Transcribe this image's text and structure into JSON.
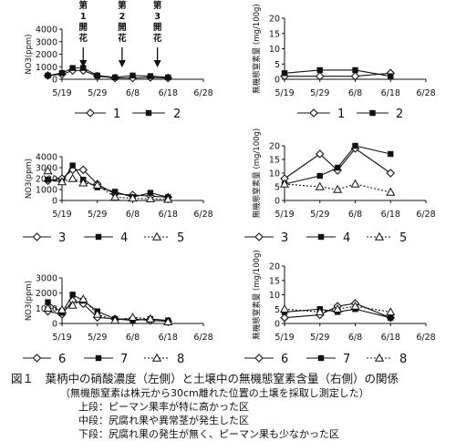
{
  "chart_data": [
    {
      "type": "line",
      "ylabel": "NO3(ppm)",
      "ylim": [
        0,
        4000
      ],
      "yticks": [
        0,
        1000,
        2000,
        3000,
        4000
      ],
      "xticks": [
        "5/19",
        "5/29",
        "6/8",
        "6/18",
        "6/28"
      ],
      "annotations": [
        {
          "text": "第\n1\n開\n花",
          "x": 6
        },
        {
          "text": "第\n2\n開\n花",
          "x": 17
        },
        {
          "text": "第\n3\n開\n花",
          "x": 27
        }
      ],
      "series": [
        {
          "name": "1",
          "marker": "diamond-open",
          "line": "solid",
          "x": [
            -4,
            0,
            3,
            6,
            10,
            15,
            20,
            25,
            30
          ],
          "y": [
            300,
            400,
            700,
            700,
            250,
            100,
            100,
            150,
            100
          ]
        },
        {
          "name": "2",
          "marker": "square-filled",
          "line": "solid",
          "x": [
            -4,
            0,
            3,
            6,
            10,
            15,
            20,
            25,
            30
          ],
          "y": [
            300,
            500,
            900,
            900,
            300,
            150,
            300,
            250,
            150
          ]
        }
      ]
    },
    {
      "type": "line",
      "ylabel": "無機態窒素量 (mg/100g)",
      "ylim": [
        0,
        20
      ],
      "yticks": [
        0,
        5,
        10,
        15,
        20
      ],
      "xticks": [
        "5/19",
        "5/29",
        "6/8",
        "6/18",
        "6/28"
      ],
      "series": [
        {
          "name": "1",
          "marker": "diamond-open",
          "line": "solid",
          "x": [
            0,
            10,
            20,
            30
          ],
          "y": [
            1,
            1,
            1,
            2
          ]
        },
        {
          "name": "2",
          "marker": "square-filled",
          "line": "solid",
          "x": [
            0,
            10,
            20,
            30
          ],
          "y": [
            2,
            3,
            3,
            1
          ]
        }
      ]
    },
    {
      "type": "line",
      "ylabel": "NO3(ppm)",
      "ylim": [
        0,
        4000
      ],
      "yticks": [
        0,
        1000,
        2000,
        3000,
        4000
      ],
      "xticks": [
        "5/19",
        "5/29",
        "6/8",
        "6/18",
        "6/28"
      ],
      "series": [
        {
          "name": "3",
          "marker": "diamond-open",
          "line": "solid",
          "x": [
            -4,
            0,
            3,
            6,
            10,
            15,
            20,
            25,
            30
          ],
          "y": [
            1800,
            2000,
            2800,
            2800,
            1500,
            600,
            500,
            400,
            300
          ]
        },
        {
          "name": "4",
          "marker": "square-filled",
          "line": "solid",
          "x": [
            -4,
            0,
            3,
            6,
            10,
            15,
            20,
            25,
            30
          ],
          "y": [
            1900,
            1700,
            3200,
            1900,
            1200,
            800,
            300,
            700,
            300
          ]
        },
        {
          "name": "5",
          "marker": "triangle-open",
          "line": "dotted",
          "x": [
            -4,
            0,
            3,
            6,
            10,
            15,
            20,
            25,
            30
          ],
          "y": [
            2700,
            1700,
            2000,
            1600,
            1400,
            300,
            200,
            150,
            100
          ]
        }
      ]
    },
    {
      "type": "line",
      "ylabel": "無機態窒素量 (mg/100g)",
      "ylim": [
        0,
        20
      ],
      "yticks": [
        0,
        5,
        10,
        15,
        20
      ],
      "xticks": [
        "5/19",
        "5/29",
        "6/8",
        "6/18",
        "6/28"
      ],
      "series": [
        {
          "name": "3",
          "marker": "diamond-open",
          "line": "solid",
          "x": [
            0,
            10,
            15,
            20,
            30
          ],
          "y": [
            8,
            17,
            11,
            19,
            10
          ]
        },
        {
          "name": "4",
          "marker": "square-filled",
          "line": "solid",
          "x": [
            0,
            10,
            15,
            20,
            30
          ],
          "y": [
            6,
            9,
            12,
            20,
            17
          ]
        },
        {
          "name": "5",
          "marker": "triangle-open",
          "line": "dotted",
          "x": [
            0,
            10,
            15,
            20,
            30
          ],
          "y": [
            6,
            5,
            4,
            6,
            3
          ]
        }
      ]
    },
    {
      "type": "line",
      "ylabel": "NO3(ppm)",
      "ylim": [
        0,
        3000
      ],
      "yticks": [
        0,
        1000,
        2000,
        3000
      ],
      "xticks": [
        "5/19",
        "5/29",
        "6/8",
        "6/18",
        "6/28"
      ],
      "series": [
        {
          "name": "6",
          "marker": "diamond-open",
          "line": "solid",
          "x": [
            -4,
            0,
            3,
            6,
            10,
            15,
            20,
            25,
            30
          ],
          "y": [
            800,
            600,
            1500,
            1300,
            400,
            300,
            300,
            200,
            150
          ]
        },
        {
          "name": "7",
          "marker": "square-filled",
          "line": "solid",
          "x": [
            -4,
            0,
            3,
            6,
            10,
            15,
            20,
            25,
            30
          ],
          "y": [
            1400,
            700,
            1900,
            1500,
            800,
            300,
            200,
            300,
            200
          ]
        },
        {
          "name": "8",
          "marker": "triangle-open",
          "line": "dotted",
          "x": [
            -4,
            0,
            3,
            6,
            10,
            15,
            20,
            25,
            30
          ],
          "y": [
            1000,
            900,
            1200,
            1600,
            600,
            200,
            400,
            300,
            100
          ]
        }
      ]
    },
    {
      "type": "line",
      "ylabel": "無機態窒素量 (mg/100g)",
      "ylim": [
        0,
        20
      ],
      "yticks": [
        0,
        5,
        10,
        15,
        20
      ],
      "xticks": [
        "5/19",
        "5/29",
        "6/8",
        "6/18",
        "6/28"
      ],
      "series": [
        {
          "name": "6",
          "marker": "diamond-open",
          "line": "solid",
          "x": [
            0,
            10,
            15,
            20,
            30
          ],
          "y": [
            2,
            3,
            6,
            7,
            2
          ]
        },
        {
          "name": "7",
          "marker": "square-filled",
          "line": "solid",
          "x": [
            0,
            10,
            15,
            20,
            30
          ],
          "y": [
            4,
            5,
            4,
            5,
            2
          ]
        },
        {
          "name": "8",
          "marker": "triangle-open",
          "line": "dotted",
          "x": [
            0,
            10,
            15,
            20,
            30
          ],
          "y": [
            5,
            4,
            5,
            6,
            4
          ]
        }
      ]
    }
  ],
  "caption": {
    "title": "図１　葉柄中の硝酸濃度（左側）と土壌中の無機態窒素含量（右側）の関係",
    "notes": [
      "（無機態窒素は株元から30cm離れた位置の土壌を採取し測定した）",
      "上段：ピーマン果率が特に高かった区",
      "中段：尻腐れ果や異常茎が発生した区",
      "下段：尻腐れ果の発生が無く、ピーマン果も少なかった区"
    ]
  }
}
